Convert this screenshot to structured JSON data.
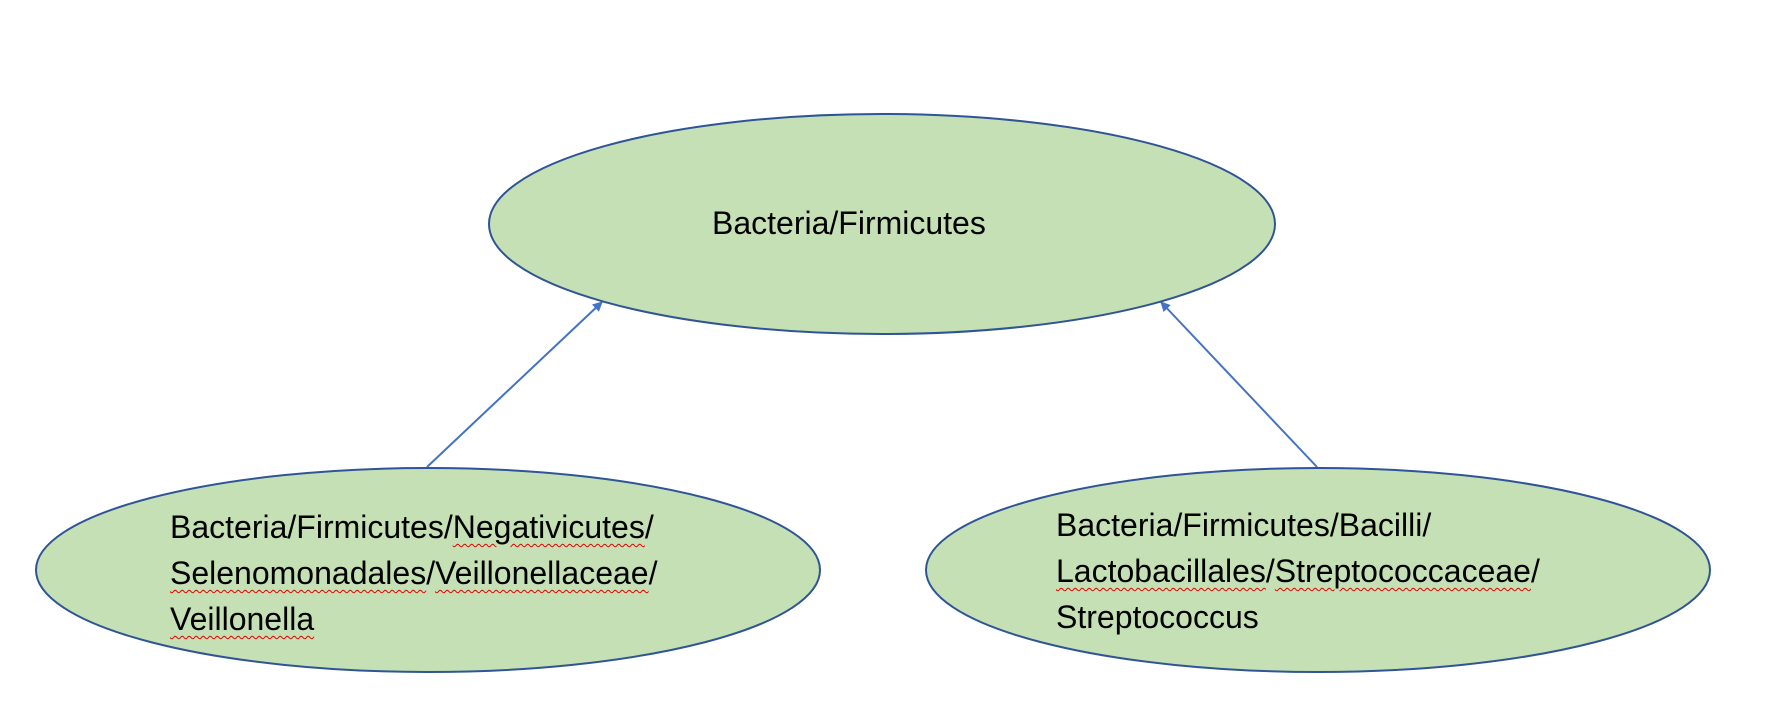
{
  "nodes": {
    "root": {
      "label": "Bacteria/Firmicutes"
    },
    "left": {
      "lines": [
        [
          {
            "text": "Bacteria/Firmicutes/",
            "flag": false
          },
          {
            "text": "Negativicutes",
            "flag": true
          },
          {
            "text": "/",
            "flag": false
          }
        ],
        [
          {
            "text": "Selenomonadales",
            "flag": true
          },
          {
            "text": "/",
            "flag": false
          },
          {
            "text": "Veillonellaceae",
            "flag": true
          },
          {
            "text": "/",
            "flag": false
          }
        ],
        [
          {
            "text": "Veillonella",
            "flag": true
          }
        ]
      ]
    },
    "right": {
      "lines": [
        [
          {
            "text": "Bacteria/Firmicutes/Bacilli/",
            "flag": false
          }
        ],
        [
          {
            "text": "Lactobacillales",
            "flag": true
          },
          {
            "text": "/",
            "flag": false
          },
          {
            "text": "Streptococcaceae",
            "flag": true
          },
          {
            "text": "/",
            "flag": false
          }
        ],
        [
          {
            "text": "Streptococcus",
            "flag": false
          }
        ]
      ]
    }
  },
  "edges": [
    {
      "from": "left",
      "to": "root"
    },
    {
      "from": "right",
      "to": "root"
    }
  ],
  "colors": {
    "node_fill": "#c5e0b4",
    "node_stroke": "#2f5597",
    "edge": "#4472c4",
    "spellcheck_underline": "#e00000",
    "text": "#000000"
  }
}
